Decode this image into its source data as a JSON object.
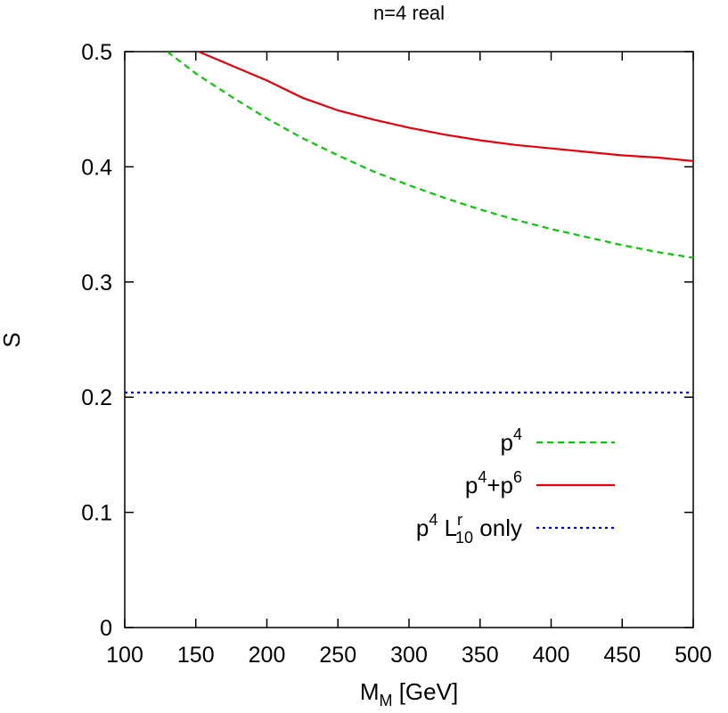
{
  "chart_data": {
    "type": "line",
    "title": "n=4 real",
    "xlabel": {
      "main": "M",
      "sub": "M",
      "rest": " [GeV]"
    },
    "ylabel": "S",
    "xlim": [
      100,
      500
    ],
    "ylim": [
      0,
      0.5
    ],
    "xticks": [
      100,
      150,
      200,
      250,
      300,
      350,
      400,
      450,
      500
    ],
    "yticks": [
      0,
      0.1,
      0.2,
      0.3,
      0.4,
      0.5
    ],
    "ytick_labels": [
      "0",
      "0.1",
      "0.2",
      "0.3",
      "0.4",
      "0.5"
    ],
    "grid": false,
    "legend_position": "bottom-right",
    "series": [
      {
        "key": "p4",
        "legend": {
          "parts": [
            {
              "t": "p"
            },
            {
              "t": "4",
              "sup": true
            }
          ]
        },
        "color": "#00cc00",
        "dash": "dashed",
        "x": [
          130,
          150,
          175,
          200,
          225,
          250,
          275,
          300,
          325,
          350,
          375,
          400,
          425,
          450,
          475,
          500
        ],
        "y": [
          0.5,
          0.481,
          0.461,
          0.442,
          0.425,
          0.41,
          0.396,
          0.384,
          0.373,
          0.363,
          0.354,
          0.346,
          0.339,
          0.332,
          0.326,
          0.321
        ]
      },
      {
        "key": "p4p6",
        "legend": {
          "parts": [
            {
              "t": "p"
            },
            {
              "t": "4",
              "sup": true
            },
            {
              "t": "+p"
            },
            {
              "t": "6",
              "sup": true
            }
          ]
        },
        "color": "#e8000b",
        "dash": "solid",
        "x": [
          152,
          175,
          200,
          225,
          250,
          275,
          300,
          325,
          350,
          375,
          400,
          425,
          450,
          475,
          500
        ],
        "y": [
          0.5,
          0.488,
          0.475,
          0.46,
          0.449,
          0.441,
          0.434,
          0.428,
          0.423,
          0.419,
          0.416,
          0.413,
          0.41,
          0.408,
          0.405
        ]
      },
      {
        "key": "p4L10",
        "legend": {
          "parts": [
            {
              "t": "p"
            },
            {
              "t": "4",
              "sup": true
            },
            {
              "t": " L"
            },
            {
              "t": "r",
              "sup": true
            },
            {
              "t": "10",
              "sub": true
            },
            {
              "t": " only"
            }
          ]
        },
        "color": "#0000dd",
        "dash": "dotted",
        "x": [
          100,
          500
        ],
        "y": [
          0.204,
          0.204
        ]
      }
    ]
  }
}
